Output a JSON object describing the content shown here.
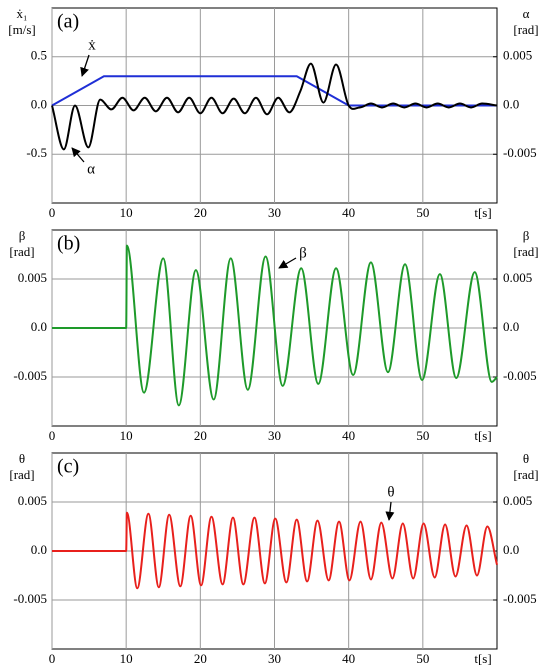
{
  "chart_data": [
    {
      "type": "line",
      "panel_label": "(a)",
      "ylabel": [
        "ẋ₁",
        "[m/s]"
      ],
      "y2label": [
        "α",
        "[rad]"
      ],
      "xlabel": "t[s]",
      "xlim": [
        0,
        60
      ],
      "xticks": [
        0,
        10,
        20,
        30,
        40,
        50
      ],
      "ylim": [
        -1,
        1
      ],
      "yticks": [
        0.5,
        {
          "value": 0,
          "label": "0.0"
        },
        -0.5
      ],
      "y2lim": [
        -0.01,
        0.01
      ],
      "y2ticks": [
        0.005,
        {
          "value": 0,
          "label": "0.0"
        },
        -0.005
      ],
      "grid": true,
      "series": [
        {
          "name": "ẋ",
          "color": "#1f2fd6",
          "x": [
            0,
            7,
            33,
            40,
            60
          ],
          "values": [
            0,
            0.3,
            0.3,
            0,
            0
          ]
        },
        {
          "name": "α",
          "axis": "y2",
          "color": "#000000",
          "x": [
            0,
            1.6,
            3.1,
            4.9,
            6.5,
            8.0,
            9.5,
            11.0,
            12.5,
            14.0,
            15.5,
            17.0,
            18.5,
            20.0,
            21.5,
            23.0,
            24.5,
            26.0,
            27.5,
            29.0,
            30.5,
            32.0,
            33.5,
            34.9,
            36.6,
            38.3,
            40.0,
            41.5,
            43.0,
            44.5,
            46.0,
            47.5,
            49.0,
            50.5,
            52.0,
            53.5,
            55.0,
            56.5,
            58.0,
            60.0
          ],
          "values": [
            0,
            -0.0045,
            0,
            -0.0043,
            0.0006,
            -0.0004,
            0.0008,
            -0.0005,
            0.0008,
            -0.0006,
            0.0008,
            -0.0007,
            0.0008,
            -0.0008,
            0.0008,
            -0.0008,
            0.0007,
            -0.0008,
            0.0008,
            -0.0009,
            0.0008,
            -0.0007,
            0.0015,
            0.0043,
            0.0003,
            0.0042,
            0,
            -0.0002,
            0.0002,
            -0.0002,
            0.0002,
            -0.0002,
            0.0002,
            -0.0002,
            0.0002,
            -0.0002,
            0.0002,
            -0.0002,
            0.0002,
            0
          ]
        }
      ]
    },
    {
      "type": "line",
      "panel_label": "(b)",
      "ylabel": [
        "β",
        "[rad]"
      ],
      "y2label": [
        "β",
        "[rad]"
      ],
      "xlabel": "t[s]",
      "xlim": [
        0,
        60
      ],
      "xticks": [
        0,
        10,
        20,
        30,
        40,
        50
      ],
      "ylim": [
        -0.01,
        0.01
      ],
      "yticks": [
        0.005,
        {
          "value": 0,
          "label": "0.0"
        },
        -0.005
      ],
      "y2lim": [
        -0.01,
        0.01
      ],
      "y2ticks": [
        0.005,
        {
          "value": 0,
          "label": "0.0"
        },
        -0.005
      ],
      "grid": true,
      "series": [
        {
          "name": "β",
          "color": "#1e9a2a",
          "x": [
            0,
            10,
            10.1,
            12.4,
            15.0,
            17.1,
            19.4,
            21.8,
            24.1,
            26.4,
            28.8,
            31.1,
            33.6,
            35.9,
            38.3,
            40.6,
            43.0,
            45.3,
            47.6,
            49.9,
            52.3,
            54.5,
            57.0,
            59.3,
            60
          ],
          "values": [
            0,
            0,
            0.0084,
            -0.0066,
            0.0071,
            -0.0079,
            0.0059,
            -0.0073,
            0.0071,
            -0.0063,
            0.0073,
            -0.0059,
            0.0061,
            -0.0057,
            0.0061,
            -0.0048,
            0.0067,
            -0.0045,
            0.0065,
            -0.0053,
            0.0055,
            -0.0051,
            0.0057,
            -0.0055,
            -0.005
          ]
        }
      ]
    },
    {
      "type": "line",
      "panel_label": "(c)",
      "ylabel": [
        "θ",
        "[rad]"
      ],
      "y2label": [
        "θ",
        "[rad]"
      ],
      "xlabel": "t[s]",
      "xlim": [
        0,
        60
      ],
      "xticks": [
        0,
        10,
        20,
        30,
        40,
        50
      ],
      "ylim": [
        -0.01,
        0.01
      ],
      "yticks": [
        0.005,
        {
          "value": 0,
          "label": "0.0"
        },
        -0.005
      ],
      "y2lim": [
        -0.01,
        0.01
      ],
      "y2ticks": [
        0.005,
        {
          "value": 0,
          "label": "0.0"
        },
        -0.005
      ],
      "grid": true,
      "series": [
        {
          "name": "θ",
          "color": "#e8201c",
          "x": [
            0,
            10,
            10.1,
            11.5,
            13.0,
            14.4,
            15.8,
            17.3,
            18.7,
            20.1,
            21.5,
            23.0,
            24.4,
            25.8,
            27.3,
            28.7,
            30.1,
            31.6,
            33.0,
            34.4,
            35.8,
            37.3,
            38.7,
            40.1,
            41.6,
            43.0,
            44.4,
            45.9,
            47.3,
            48.7,
            50.1,
            51.6,
            53.0,
            54.4,
            55.9,
            57.3,
            58.7,
            60.0
          ],
          "values": [
            0,
            0,
            0.0039,
            -0.0038,
            0.0038,
            -0.0037,
            0.0037,
            -0.0036,
            0.0036,
            -0.0035,
            0.0035,
            -0.0034,
            0.0034,
            -0.0034,
            0.0034,
            -0.0033,
            0.0033,
            -0.0032,
            0.0032,
            -0.0031,
            0.0031,
            -0.003,
            0.003,
            -0.003,
            0.003,
            -0.0029,
            0.0029,
            -0.0028,
            0.0028,
            -0.0028,
            0.0028,
            -0.0027,
            0.0027,
            -0.0026,
            0.0026,
            -0.0025,
            0.0025,
            -0.0014
          ]
        }
      ]
    }
  ]
}
